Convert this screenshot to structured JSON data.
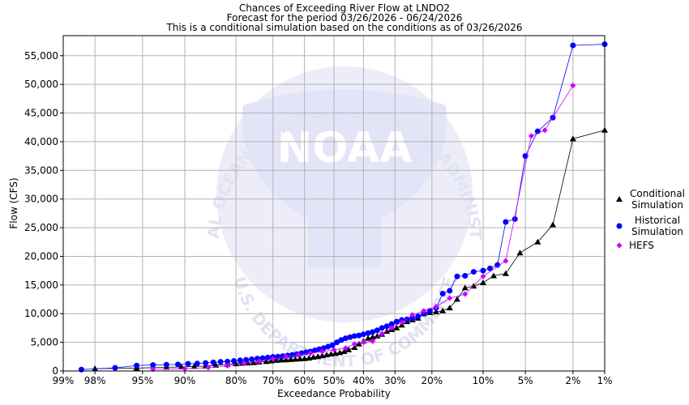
{
  "chart_data": {
    "type": "scatter",
    "title_lines": [
      "Chances of Exceeding River Flow at LNDO2",
      "Forecast for the period 03/26/2026 - 06/24/2026",
      "This is a conditional simulation based on the conditions as of 03/26/2026"
    ],
    "xlabel": "Exceedance Probability",
    "ylabel": "Flow (CFS)",
    "x_scale": "normal-probability",
    "x_ticks": [
      {
        "p": 0.99,
        "label": "99%"
      },
      {
        "p": 0.98,
        "label": "98%"
      },
      {
        "p": 0.95,
        "label": "95%"
      },
      {
        "p": 0.9,
        "label": "90%"
      },
      {
        "p": 0.8,
        "label": "80%"
      },
      {
        "p": 0.7,
        "label": "70%"
      },
      {
        "p": 0.6,
        "label": "60%"
      },
      {
        "p": 0.5,
        "label": "50%"
      },
      {
        "p": 0.4,
        "label": "40%"
      },
      {
        "p": 0.3,
        "label": "30%"
      },
      {
        "p": 0.2,
        "label": "20%"
      },
      {
        "p": 0.1,
        "label": "10%"
      },
      {
        "p": 0.05,
        "label": "5%"
      },
      {
        "p": 0.02,
        "label": "2%"
      },
      {
        "p": 0.01,
        "label": "1%"
      }
    ],
    "ylim": [
      0,
      58500
    ],
    "y_ticks": [
      {
        "v": 0,
        "label": "0"
      },
      {
        "v": 5000,
        "label": "5,000"
      },
      {
        "v": 10000,
        "label": "10,000"
      },
      {
        "v": 15000,
        "label": "15,000"
      },
      {
        "v": 20000,
        "label": "20,000"
      },
      {
        "v": 25000,
        "label": "25,000"
      },
      {
        "v": 30000,
        "label": "30,000"
      },
      {
        "v": 35000,
        "label": "35,000"
      },
      {
        "v": 40000,
        "label": "40,000"
      },
      {
        "v": 45000,
        "label": "45,000"
      },
      {
        "v": 50000,
        "label": "50,000"
      },
      {
        "v": 55000,
        "label": "55,000"
      }
    ],
    "grid": true,
    "legend_position": "right",
    "series": [
      {
        "name": "Conditional Simulation",
        "legend_lines": [
          "Conditional",
          "Simulation"
        ],
        "color": "#000000",
        "marker": "triangle",
        "points": [
          [
            0.98,
            400
          ],
          [
            0.955,
            500
          ],
          [
            0.925,
            650
          ],
          [
            0.905,
            700
          ],
          [
            0.885,
            800
          ],
          [
            0.865,
            850
          ],
          [
            0.845,
            1000
          ],
          [
            0.82,
            1150
          ],
          [
            0.8,
            1250
          ],
          [
            0.785,
            1350
          ],
          [
            0.77,
            1400
          ],
          [
            0.755,
            1450
          ],
          [
            0.74,
            1550
          ],
          [
            0.72,
            1650
          ],
          [
            0.705,
            1750
          ],
          [
            0.69,
            1850
          ],
          [
            0.675,
            1900
          ],
          [
            0.66,
            1950
          ],
          [
            0.645,
            2000
          ],
          [
            0.63,
            2050
          ],
          [
            0.615,
            2100
          ],
          [
            0.6,
            2150
          ],
          [
            0.585,
            2250
          ],
          [
            0.57,
            2400
          ],
          [
            0.555,
            2500
          ],
          [
            0.54,
            2650
          ],
          [
            0.525,
            2800
          ],
          [
            0.51,
            2950
          ],
          [
            0.495,
            3050
          ],
          [
            0.48,
            3200
          ],
          [
            0.465,
            3400
          ],
          [
            0.45,
            3700
          ],
          [
            0.43,
            4100
          ],
          [
            0.415,
            4700
          ],
          [
            0.4,
            5200
          ],
          [
            0.385,
            5700
          ],
          [
            0.37,
            5900
          ],
          [
            0.355,
            6100
          ],
          [
            0.34,
            6400
          ],
          [
            0.325,
            6900
          ],
          [
            0.31,
            7200
          ],
          [
            0.295,
            7500
          ],
          [
            0.28,
            8000
          ],
          [
            0.265,
            8600
          ],
          [
            0.25,
            8900
          ],
          [
            0.235,
            9200
          ],
          [
            0.22,
            10000
          ],
          [
            0.205,
            10200
          ],
          [
            0.19,
            10300
          ],
          [
            0.175,
            10500
          ],
          [
            0.16,
            11000
          ],
          [
            0.145,
            12500
          ],
          [
            0.13,
            14500
          ],
          [
            0.115,
            14800
          ],
          [
            0.1,
            15400
          ],
          [
            0.085,
            16600
          ],
          [
            0.07,
            17000
          ],
          [
            0.055,
            20600
          ],
          [
            0.04,
            22500
          ],
          [
            0.03,
            25500
          ],
          [
            0.02,
            40500
          ],
          [
            0.01,
            42000
          ]
        ]
      },
      {
        "name": "Historical Simulation",
        "legend_lines": [
          "Historical",
          "Simulation"
        ],
        "color": "#0000ff",
        "marker": "circle",
        "points": [
          [
            0.985,
            250
          ],
          [
            0.97,
            550
          ],
          [
            0.955,
            950
          ],
          [
            0.94,
            1050
          ],
          [
            0.925,
            1100
          ],
          [
            0.91,
            1150
          ],
          [
            0.895,
            1250
          ],
          [
            0.88,
            1300
          ],
          [
            0.865,
            1400
          ],
          [
            0.85,
            1500
          ],
          [
            0.835,
            1600
          ],
          [
            0.82,
            1650
          ],
          [
            0.805,
            1750
          ],
          [
            0.79,
            1850
          ],
          [
            0.775,
            1950
          ],
          [
            0.76,
            2050
          ],
          [
            0.745,
            2150
          ],
          [
            0.73,
            2250
          ],
          [
            0.715,
            2350
          ],
          [
            0.7,
            2450
          ],
          [
            0.685,
            2500
          ],
          [
            0.67,
            2600
          ],
          [
            0.655,
            2700
          ],
          [
            0.64,
            2800
          ],
          [
            0.625,
            2950
          ],
          [
            0.61,
            3100
          ],
          [
            0.595,
            3250
          ],
          [
            0.58,
            3400
          ],
          [
            0.565,
            3600
          ],
          [
            0.55,
            3800
          ],
          [
            0.535,
            4000
          ],
          [
            0.52,
            4250
          ],
          [
            0.505,
            4500
          ],
          [
            0.49,
            5000
          ],
          [
            0.475,
            5400
          ],
          [
            0.46,
            5700
          ],
          [
            0.445,
            5900
          ],
          [
            0.43,
            6100
          ],
          [
            0.415,
            6200
          ],
          [
            0.4,
            6400
          ],
          [
            0.385,
            6600
          ],
          [
            0.37,
            6800
          ],
          [
            0.355,
            7100
          ],
          [
            0.34,
            7500
          ],
          [
            0.325,
            7800
          ],
          [
            0.31,
            8200
          ],
          [
            0.295,
            8600
          ],
          [
            0.28,
            8900
          ],
          [
            0.265,
            9000
          ],
          [
            0.25,
            9200
          ],
          [
            0.235,
            9500
          ],
          [
            0.22,
            10000
          ],
          [
            0.205,
            10500
          ],
          [
            0.19,
            11000
          ],
          [
            0.175,
            13500
          ],
          [
            0.16,
            14000
          ],
          [
            0.145,
            16500
          ],
          [
            0.13,
            16600
          ],
          [
            0.115,
            17300
          ],
          [
            0.1,
            17500
          ],
          [
            0.09,
            17900
          ],
          [
            0.08,
            18500
          ],
          [
            0.07,
            26000
          ],
          [
            0.06,
            26500
          ],
          [
            0.05,
            37500
          ],
          [
            0.04,
            41800
          ],
          [
            0.03,
            44200
          ],
          [
            0.02,
            56800
          ],
          [
            0.01,
            57000
          ]
        ]
      },
      {
        "name": "HEFS",
        "legend_lines": [
          "HEFS"
        ],
        "color": "#cc00ff",
        "marker": "diamond",
        "points": [
          [
            0.94,
            300
          ],
          [
            0.9,
            400
          ],
          [
            0.86,
            600
          ],
          [
            0.82,
            900
          ],
          [
            0.78,
            1300
          ],
          [
            0.74,
            1700
          ],
          [
            0.7,
            2100
          ],
          [
            0.66,
            2500
          ],
          [
            0.62,
            2800
          ],
          [
            0.58,
            3100
          ],
          [
            0.54,
            3400
          ],
          [
            0.5,
            3700
          ],
          [
            0.46,
            4000
          ],
          [
            0.43,
            4700
          ],
          [
            0.4,
            5000
          ],
          [
            0.37,
            5200
          ],
          [
            0.34,
            6500
          ],
          [
            0.31,
            7500
          ],
          [
            0.28,
            8500
          ],
          [
            0.25,
            9800
          ],
          [
            0.22,
            10500
          ],
          [
            0.19,
            11200
          ],
          [
            0.16,
            12700
          ],
          [
            0.13,
            13400
          ],
          [
            0.1,
            16500
          ],
          [
            0.07,
            19200
          ],
          [
            0.045,
            41000
          ],
          [
            0.035,
            42000
          ],
          [
            0.02,
            49800
          ]
        ]
      }
    ]
  },
  "watermark": {
    "text_top": "NATIONAL OCEANIC AND ATMOSPHERIC ADMINISTRATION",
    "text_bottom": "U.S. DEPARTMENT OF COMMERCE",
    "center": "NOAA"
  }
}
